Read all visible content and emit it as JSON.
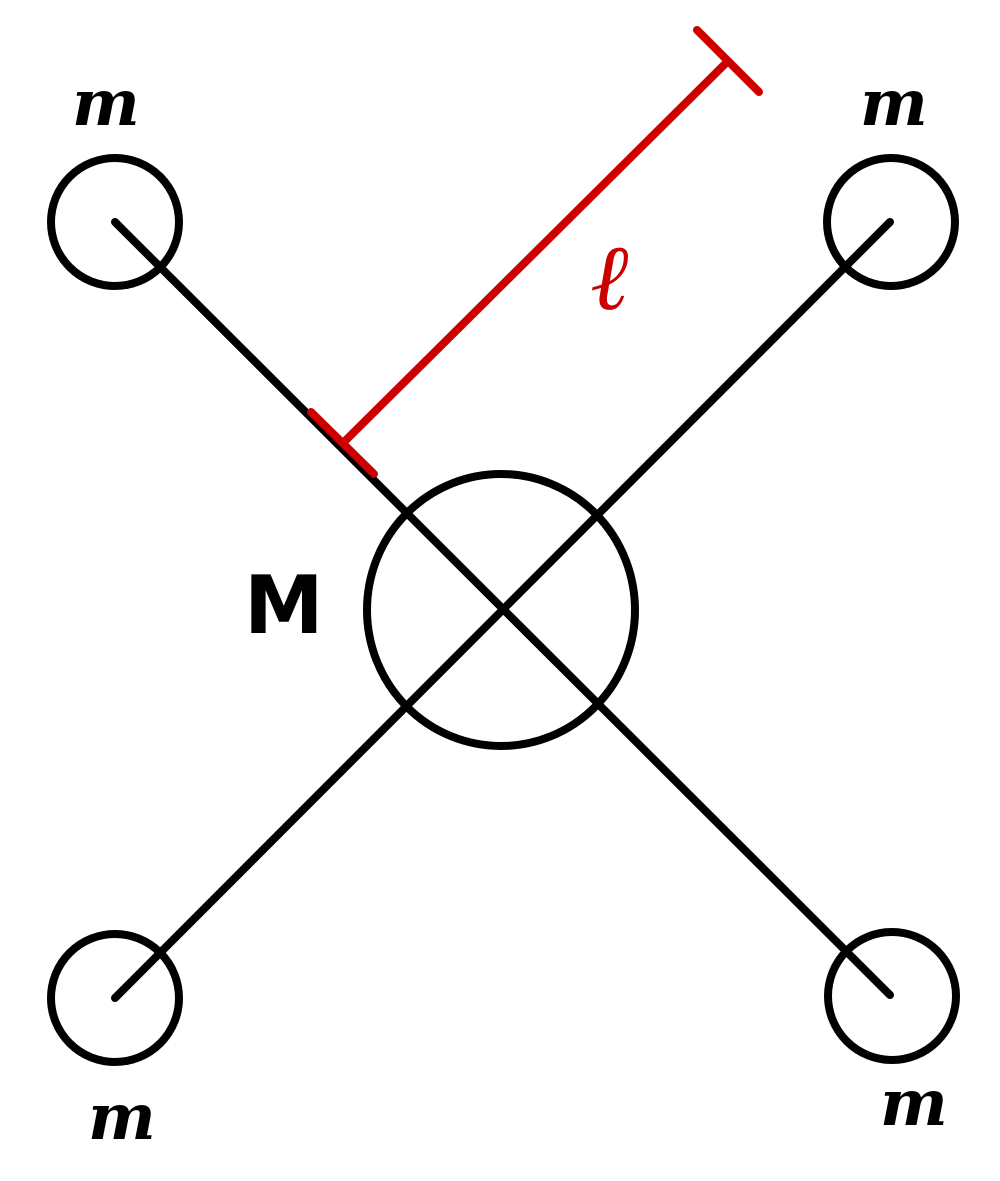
{
  "labels": {
    "mass_top_left": "m",
    "mass_top_right": "m",
    "mass_bottom_left": "m",
    "mass_bottom_right": "m",
    "central_mass": "M",
    "length": "ℓ"
  },
  "colors": {
    "structure": "#000000",
    "dimension": "#cc0000"
  }
}
